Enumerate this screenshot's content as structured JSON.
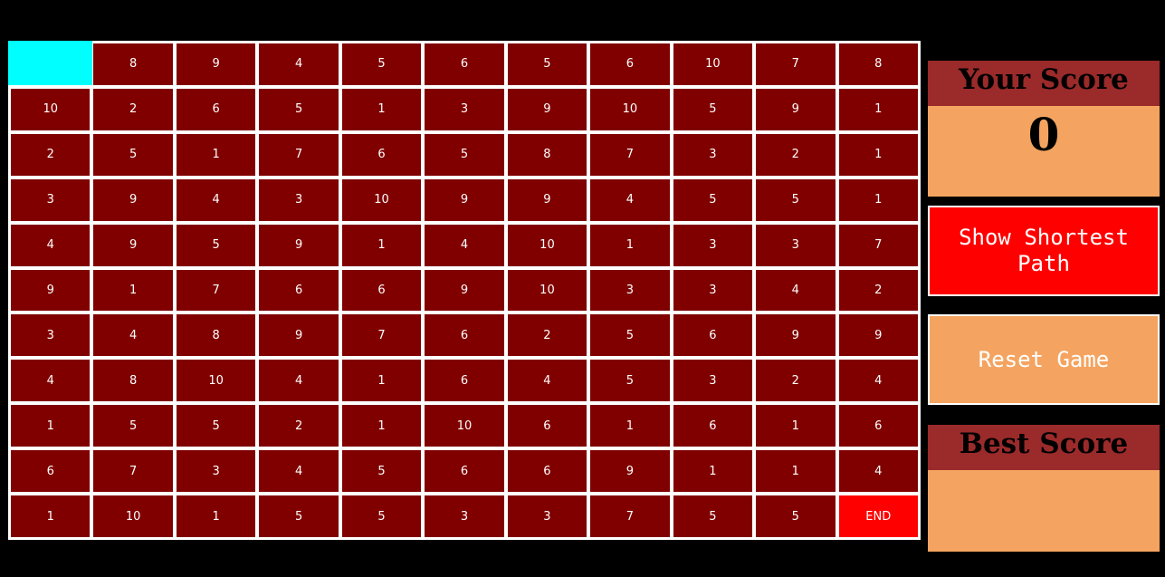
{
  "grid": {
    "end_label": "END",
    "rows": [
      [
        "",
        "8",
        "9",
        "4",
        "5",
        "6",
        "5",
        "6",
        "10",
        "7",
        "8"
      ],
      [
        "10",
        "2",
        "6",
        "5",
        "1",
        "3",
        "9",
        "10",
        "5",
        "9",
        "1"
      ],
      [
        "2",
        "5",
        "1",
        "7",
        "6",
        "5",
        "8",
        "7",
        "3",
        "2",
        "1"
      ],
      [
        "3",
        "9",
        "4",
        "3",
        "10",
        "9",
        "9",
        "4",
        "5",
        "5",
        "1"
      ],
      [
        "4",
        "9",
        "5",
        "9",
        "1",
        "4",
        "10",
        "1",
        "3",
        "3",
        "7"
      ],
      [
        "9",
        "1",
        "7",
        "6",
        "6",
        "9",
        "10",
        "3",
        "3",
        "4",
        "2"
      ],
      [
        "3",
        "4",
        "8",
        "9",
        "7",
        "6",
        "2",
        "5",
        "6",
        "9",
        "9"
      ],
      [
        "4",
        "8",
        "10",
        "4",
        "1",
        "6",
        "4",
        "5",
        "3",
        "2",
        "4"
      ],
      [
        "1",
        "5",
        "5",
        "2",
        "1",
        "10",
        "6",
        "1",
        "6",
        "1",
        "6"
      ],
      [
        "6",
        "7",
        "3",
        "4",
        "5",
        "6",
        "6",
        "9",
        "1",
        "1",
        "4"
      ],
      [
        "1",
        "10",
        "1",
        "5",
        "5",
        "3",
        "3",
        "7",
        "5",
        "5",
        "END"
      ]
    ]
  },
  "score_panel": {
    "title": "Your Score",
    "value": "0"
  },
  "buttons": {
    "shortest_path": "Show Shortest Path",
    "reset": "Reset Game"
  },
  "best_panel": {
    "title": "Best Score",
    "value": ""
  },
  "colors": {
    "cell": "#800000",
    "start_cell": "#00ffff",
    "end_cell": "#ff0000",
    "panel_header": "#9b2a2a",
    "panel_body": "#f4a460",
    "shortest_button": "#ff0000",
    "reset_button": "#f4a460"
  }
}
